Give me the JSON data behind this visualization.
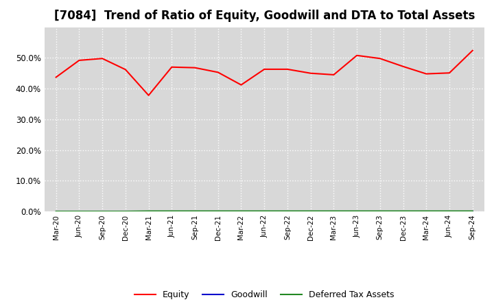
{
  "title": "[7084]  Trend of Ratio of Equity, Goodwill and DTA to Total Assets",
  "x_labels": [
    "Mar-20",
    "Jun-20",
    "Sep-20",
    "Dec-20",
    "Mar-21",
    "Jun-21",
    "Sep-21",
    "Dec-21",
    "Mar-22",
    "Jun-22",
    "Sep-22",
    "Dec-22",
    "Mar-23",
    "Jun-23",
    "Sep-23",
    "Dec-23",
    "Mar-24",
    "Jun-24",
    "Sep-24"
  ],
  "equity": [
    0.437,
    0.492,
    0.498,
    0.462,
    0.378,
    0.47,
    0.468,
    0.453,
    0.412,
    0.463,
    0.463,
    0.45,
    0.445,
    0.508,
    0.498,
    0.472,
    0.448,
    0.451,
    0.524
  ],
  "goodwill": [
    0.0,
    0.0,
    0.0,
    0.0,
    0.0,
    0.0,
    0.0,
    0.0,
    0.0,
    0.0,
    0.0,
    0.0,
    0.0,
    0.0,
    0.0,
    0.0,
    0.0,
    0.0,
    0.0
  ],
  "dta": [
    0.0,
    0.0,
    0.0,
    0.0,
    0.001,
    0.001,
    0.001,
    0.001,
    0.001,
    0.001,
    0.001,
    0.001,
    0.001,
    0.001,
    0.001,
    0.001,
    0.001,
    0.001,
    0.001
  ],
  "equity_color": "#ff0000",
  "goodwill_color": "#0000cc",
  "dta_color": "#228822",
  "ylim": [
    0.0,
    0.6
  ],
  "yticks": [
    0.0,
    0.1,
    0.2,
    0.3,
    0.4,
    0.5
  ],
  "background_color": "#ffffff",
  "plot_bg_color": "#d8d8d8",
  "grid_color": "#ffffff",
  "title_fontsize": 12,
  "legend_labels": [
    "Equity",
    "Goodwill",
    "Deferred Tax Assets"
  ]
}
